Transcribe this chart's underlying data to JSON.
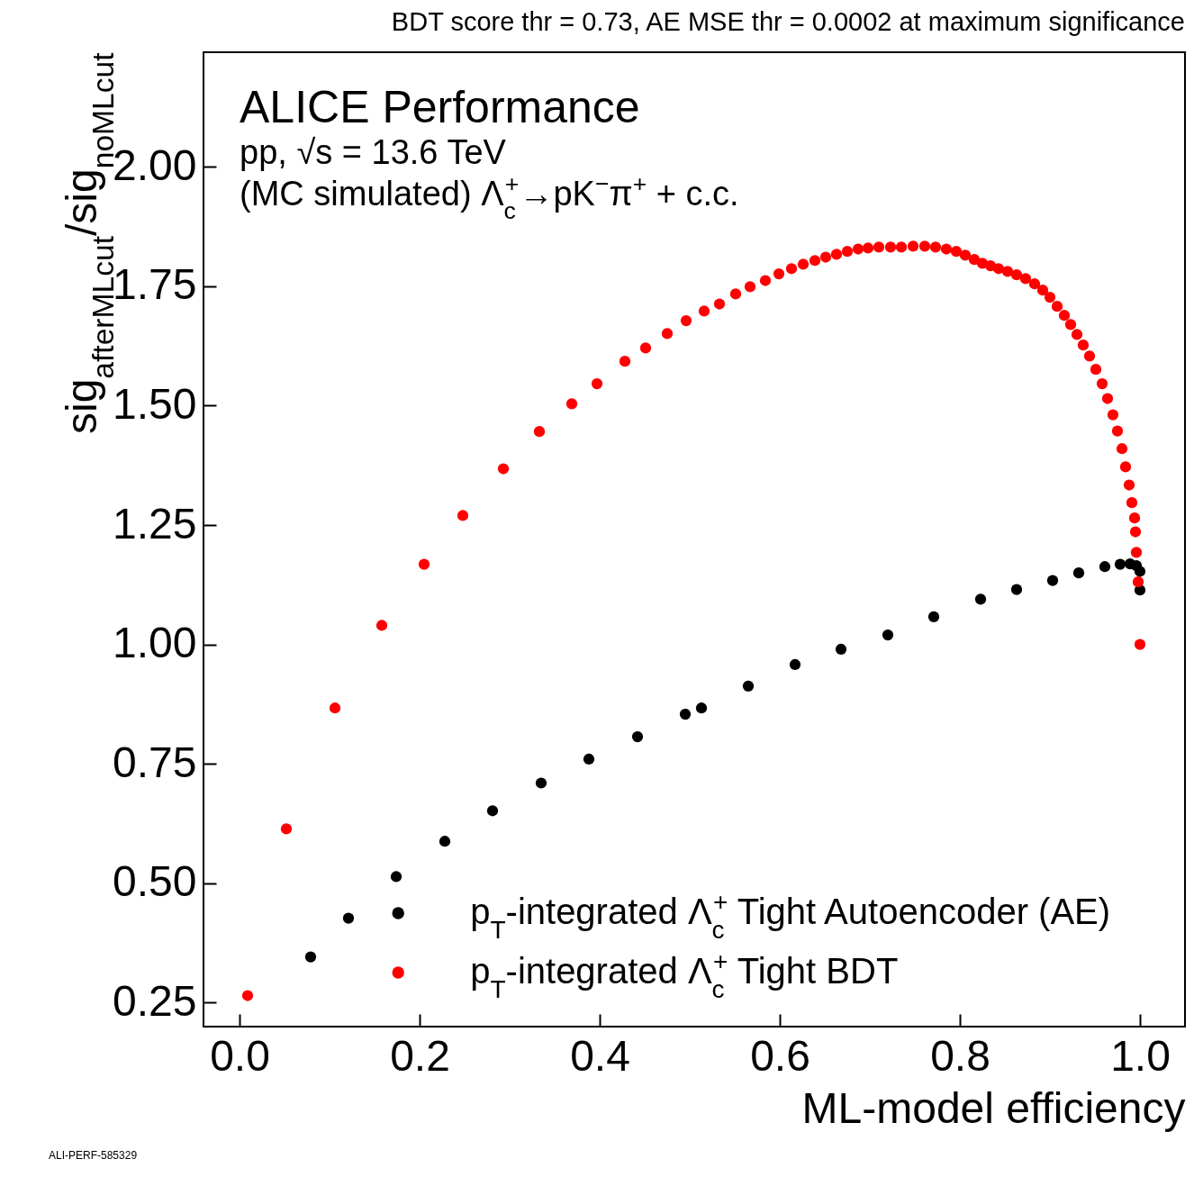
{
  "chart_data": {
    "type": "scatter",
    "title": "ALICE Performance",
    "subtitle": "pp, √s = 13.6 TeV",
    "annotations": [
      "(MC simulated) Λ$_{c}$$^{+}$→pK$^{−}$π$^{+}$ + c.c.",
      "BDT score thr = 0.73, AE MSE thr = 0.0002 at maximum significance",
      "ALI-PERF-585329"
    ],
    "xlabel": "ML-model efficiency",
    "ylabel": "sig$_{afterMLcut}$/sig$_{noMLcut}$",
    "xlim": [
      -0.04,
      1.05
    ],
    "ylim": [
      0.2,
      2.24
    ],
    "xticks": [
      {
        "value": 0,
        "label": "0.0"
      },
      0.2,
      0.4,
      0.6,
      0.8,
      {
        "value": 1,
        "label": "1.0"
      }
    ],
    "yticks": [
      0.25,
      {
        "value": 0.5,
        "label": "0.50"
      },
      0.75,
      {
        "value": 1,
        "label": "1.00"
      },
      1.25,
      {
        "value": 1.5,
        "label": "1.50"
      },
      1.75,
      {
        "value": 2,
        "label": "2.00"
      }
    ],
    "marker": "circle",
    "legend": "bottom right",
    "series": [
      {
        "name": "p$_{T}$-integrated Λ$_{c}$$^{+}$ Tight Autoencoder (AE)",
        "color": "#000000",
        "x": [
          0.079,
          0.121,
          0.174,
          0.228,
          0.281,
          0.335,
          0.388,
          0.442,
          0.495,
          0.513,
          0.565,
          0.617,
          0.668,
          0.72,
          0.771,
          0.823,
          0.863,
          0.903,
          0.932,
          0.961,
          0.978,
          0.989,
          0.996,
          1.0,
          1.0
        ],
        "values": [
          0.346,
          0.427,
          0.514,
          0.588,
          0.652,
          0.71,
          0.76,
          0.807,
          0.854,
          0.867,
          0.913,
          0.958,
          0.99,
          1.02,
          1.058,
          1.095,
          1.115,
          1.134,
          1.15,
          1.163,
          1.168,
          1.169,
          1.165,
          1.153,
          1.114
        ]
      },
      {
        "name": "p$_{T}$-integrated  Λ$_{c}$$^{+}$ Tight BDT",
        "color": "#ff0000",
        "x": [
          0.009,
          0.052,
          0.106,
          0.158,
          0.205,
          0.248,
          0.293,
          0.333,
          0.369,
          0.397,
          0.428,
          0.451,
          0.475,
          0.496,
          0.516,
          0.533,
          0.551,
          0.567,
          0.584,
          0.599,
          0.613,
          0.626,
          0.639,
          0.651,
          0.663,
          0.675,
          0.687,
          0.698,
          0.71,
          0.723,
          0.735,
          0.748,
          0.761,
          0.773,
          0.785,
          0.796,
          0.806,
          0.816,
          0.825,
          0.834,
          0.843,
          0.853,
          0.863,
          0.873,
          0.883,
          0.892,
          0.9,
          0.908,
          0.916,
          0.923,
          0.93,
          0.937,
          0.944,
          0.951,
          0.958,
          0.964,
          0.97,
          0.975,
          0.98,
          0.984,
          0.988,
          0.991,
          0.994,
          0.995,
          0.996,
          0.998,
          1.0
        ],
        "values": [
          0.265,
          0.614,
          0.867,
          1.04,
          1.168,
          1.27,
          1.368,
          1.446,
          1.504,
          1.546,
          1.593,
          1.621,
          1.651,
          1.678,
          1.698,
          1.713,
          1.734,
          1.749,
          1.762,
          1.776,
          1.787,
          1.796,
          1.804,
          1.811,
          1.817,
          1.823,
          1.828,
          1.83,
          1.832,
          1.832,
          1.832,
          1.834,
          1.834,
          1.832,
          1.828,
          1.823,
          1.815,
          1.806,
          1.798,
          1.793,
          1.787,
          1.781,
          1.774,
          1.766,
          1.755,
          1.742,
          1.727,
          1.708,
          1.689,
          1.67,
          1.649,
          1.627,
          1.604,
          1.576,
          1.546,
          1.515,
          1.481,
          1.447,
          1.41,
          1.372,
          1.334,
          1.297,
          1.265,
          1.236,
          1.193,
          1.131,
          1.0
        ]
      }
    ]
  }
}
